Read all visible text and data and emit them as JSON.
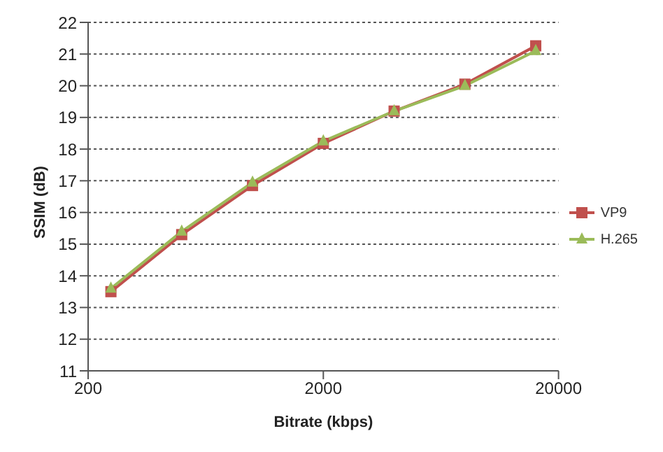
{
  "chart_data": {
    "type": "line",
    "xlabel": "Bitrate (kbps)",
    "ylabel": "SSIM (dB)",
    "log": "x",
    "x": [
      250,
      500,
      1000,
      2000,
      4000,
      8000,
      16000
    ],
    "series": [
      {
        "name": "VP9",
        "color": "#c0504d",
        "marker": "square",
        "values": [
          13.5,
          15.3,
          16.85,
          18.18,
          19.2,
          20.05,
          21.26
        ]
      },
      {
        "name": "H.265",
        "color": "#9bbb59",
        "marker": "triangle",
        "values": [
          13.6,
          15.4,
          16.95,
          18.25,
          19.2,
          20.0,
          21.1
        ]
      }
    ],
    "xlim": [
      200,
      20000
    ],
    "xticks": [
      200,
      2000,
      20000
    ],
    "ylim": [
      11,
      22
    ],
    "yticks": [
      11,
      12,
      13,
      14,
      15,
      16,
      17,
      18,
      19,
      20,
      21,
      22
    ],
    "grid": "y",
    "legend": "right",
    "line_style": "solid"
  }
}
